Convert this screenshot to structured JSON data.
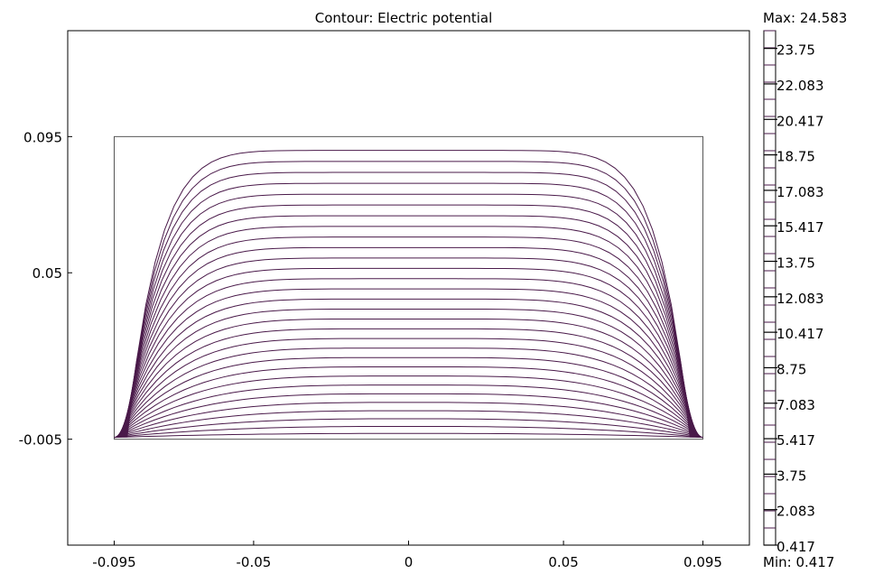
{
  "chart_data": {
    "type": "contour",
    "title": "Contour: Electric potential",
    "quantity": "Electric potential",
    "xlim": [
      -0.11,
      0.11
    ],
    "ylim": [
      -0.04,
      0.13
    ],
    "x_ticks": [
      -0.095,
      -0.05,
      0,
      0.05,
      0.095
    ],
    "x_tick_labels": [
      "-0.095",
      "-0.05",
      "0",
      "0.05",
      "0.095"
    ],
    "y_ticks": [
      -0.005,
      0.05,
      0.095
    ],
    "y_tick_labels": [
      "-0.005",
      "0.05",
      "0.095"
    ],
    "domain": {
      "x": [
        -0.095,
        0.095
      ],
      "y": [
        -0.005,
        0.095
      ]
    },
    "min_label": "Min: 0.417",
    "max_label": "Max: 24.583",
    "min": 0.417,
    "max": 24.583,
    "num_levels": 30,
    "line_color": "#4a1a4a",
    "colorbar_ticks": [
      "23.75",
      "22.083",
      "20.417",
      "18.75",
      "17.083",
      "15.417",
      "13.75",
      "12.083",
      "10.417",
      "8.75",
      "7.083",
      "5.417",
      "3.75",
      "2.083",
      "0.417"
    ],
    "colorbar_tick_values": [
      23.75,
      22.083,
      20.417,
      18.75,
      17.083,
      15.417,
      13.75,
      12.083,
      10.417,
      8.75,
      7.083,
      5.417,
      3.75,
      2.083,
      0.417
    ],
    "grid": false
  }
}
